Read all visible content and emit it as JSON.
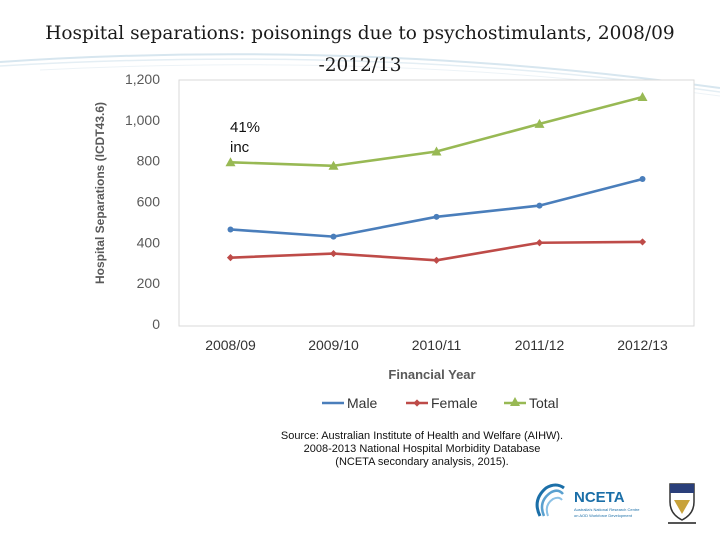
{
  "slide": {
    "title_line1": "Hospital separations: poisonings due to psychostimulants, 2008/09",
    "title_line2": "-2012/13",
    "annotation_line1": "41%",
    "annotation_line2": "inc",
    "source_line1": "Source: Australian Institute of Health and Welfare (AIHW).",
    "source_line2": "2008-2013 National Hospital Morbidity Database",
    "source_line3": "(NCETA secondary analysis, 2015).",
    "logo_text": "NCETA",
    "logo_sub_line1": "Australia's National Research Centre",
    "logo_sub_line2": "on AOD Workforce Development",
    "accent_blue": "#1b6fa8"
  },
  "chart_data": {
    "type": "line",
    "categories": [
      "2008/09",
      "2009/10",
      "2010/11",
      "2011/12",
      "2012/13"
    ],
    "series": [
      {
        "name": "Male",
        "values": [
          463,
          428,
          525,
          580,
          710
        ],
        "color": "#4a7ebb",
        "marker": "circle"
      },
      {
        "name": "Female",
        "values": [
          325,
          345,
          312,
          398,
          402
        ],
        "color": "#be4b48",
        "marker": "diamond"
      },
      {
        "name": "Total",
        "values": [
          792,
          775,
          845,
          980,
          1112
        ],
        "color": "#98b954",
        "marker": "triangle"
      }
    ],
    "ylim": [
      0,
      1200
    ],
    "yticks": [
      0,
      200,
      400,
      600,
      800,
      1000,
      1200
    ],
    "ytick_labels": [
      "0",
      "200",
      "400",
      "600",
      "800",
      "1,000",
      "1,200"
    ],
    "xlabel": "Financial Year",
    "ylabel": "Hospital Separations (ICDT43.6)",
    "grid": false,
    "legend_position": "bottom"
  }
}
